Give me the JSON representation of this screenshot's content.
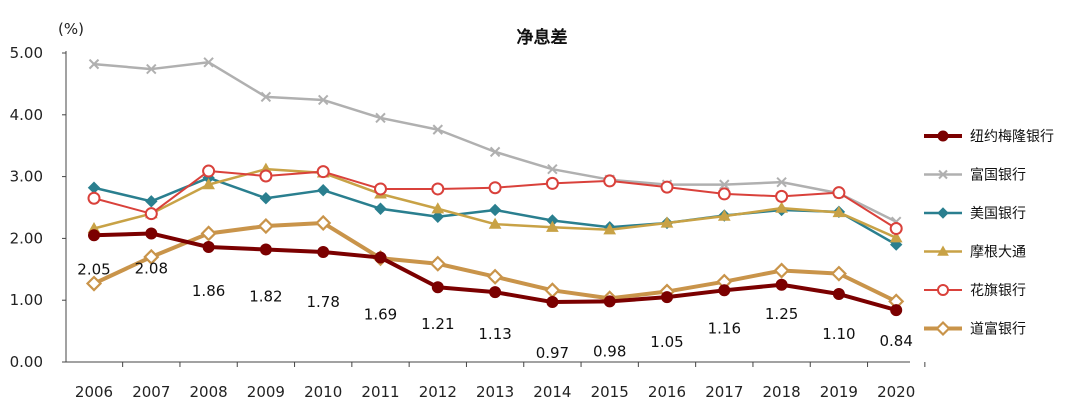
{
  "chart_data": {
    "type": "line",
    "title": "净息差",
    "ylabel": "(%)",
    "xlabel": "",
    "ylim": [
      0,
      5
    ],
    "yticks": [
      "0.00",
      "1.00",
      "2.00",
      "3.00",
      "4.00",
      "5.00"
    ],
    "categories": [
      "2006",
      "2007",
      "2008",
      "2009",
      "2010",
      "2011",
      "2012",
      "2013",
      "2014",
      "2015",
      "2016",
      "2017",
      "2018",
      "2019",
      "2020"
    ],
    "legend_position": "right",
    "series": [
      {
        "name": "纽约梅隆银行",
        "color": "#7b0000",
        "marker": "circle-filled",
        "labeled": true,
        "values": [
          2.05,
          2.08,
          1.86,
          1.82,
          1.78,
          1.69,
          1.21,
          1.13,
          0.97,
          0.98,
          1.05,
          1.16,
          1.25,
          1.1,
          0.84
        ],
        "labels": [
          "2.05",
          "2.08",
          "1.86",
          "1.82",
          "1.78",
          "1.69",
          "1.21",
          "1.13",
          "0.97",
          "0.98",
          "1.05",
          "1.16",
          "1.25",
          "1.10",
          "0.84"
        ]
      },
      {
        "name": "富国银行",
        "color": "#b0b0b0",
        "marker": "x",
        "values": [
          4.82,
          4.74,
          4.85,
          4.29,
          4.24,
          3.95,
          3.76,
          3.4,
          3.12,
          2.95,
          2.87,
          2.87,
          2.91,
          2.73,
          2.27
        ]
      },
      {
        "name": "美国银行",
        "color": "#2a7f8f",
        "marker": "diamond",
        "values": [
          2.82,
          2.6,
          2.98,
          2.65,
          2.78,
          2.48,
          2.35,
          2.46,
          2.29,
          2.18,
          2.25,
          2.37,
          2.46,
          2.43,
          1.9
        ]
      },
      {
        "name": "摩根大通",
        "color": "#c8a246",
        "marker": "triangle",
        "values": [
          2.16,
          2.4,
          2.87,
          3.12,
          3.06,
          2.72,
          2.48,
          2.23,
          2.18,
          2.14,
          2.25,
          2.36,
          2.49,
          2.42,
          2.01
        ]
      },
      {
        "name": "花旗银行",
        "color": "#d9413b",
        "marker": "circle-open",
        "values": [
          2.65,
          2.4,
          3.09,
          3.01,
          3.08,
          2.8,
          2.8,
          2.82,
          2.89,
          2.93,
          2.83,
          2.72,
          2.68,
          2.74,
          2.16
        ]
      },
      {
        "name": "道富银行",
        "color": "#c9944a",
        "marker": "diamond-open",
        "values": [
          1.27,
          1.7,
          2.08,
          2.2,
          2.25,
          1.68,
          1.59,
          1.38,
          1.16,
          1.03,
          1.14,
          1.3,
          1.48,
          1.43,
          0.98
        ]
      }
    ]
  }
}
